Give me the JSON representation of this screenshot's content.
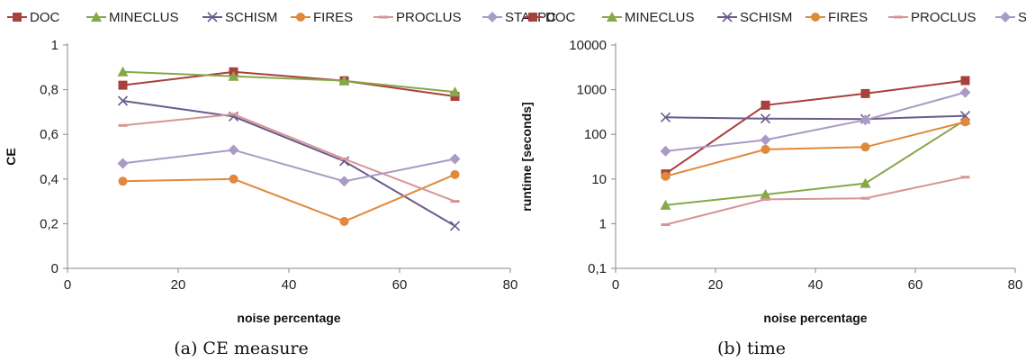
{
  "figure": {
    "captions": [
      "(a) CE measure",
      "(b) time"
    ]
  },
  "chart_data": [
    {
      "type": "line",
      "title": "",
      "caption": "(a) CE measure",
      "xlabel": "noise percentage",
      "ylabel": "CE",
      "xlim": [
        0,
        80
      ],
      "ylim": [
        0,
        1
      ],
      "xticks": [
        "0",
        "20",
        "40",
        "60",
        "80"
      ],
      "yticks": [
        "0",
        "0,2",
        "0,4",
        "0,6",
        "0,8",
        "1"
      ],
      "x": [
        10,
        30,
        50,
        70
      ],
      "legend_position": "top",
      "grid": false,
      "series": [
        {
          "name": "DOC",
          "color": "#a8403c",
          "marker": "square",
          "values": [
            0.82,
            0.88,
            0.84,
            0.77
          ]
        },
        {
          "name": "MINECLUS",
          "color": "#86a848",
          "marker": "triangle",
          "values": [
            0.88,
            0.86,
            0.84,
            0.79
          ]
        },
        {
          "name": "SCHISM",
          "color": "#6b5b8c",
          "marker": "x",
          "values": [
            0.75,
            0.68,
            0.48,
            0.19
          ]
        },
        {
          "name": "FIRES",
          "color": "#e0893c",
          "marker": "circle",
          "values": [
            0.39,
            0.4,
            0.21,
            0.42
          ]
        },
        {
          "name": "PROCLUS",
          "color": "#d69594",
          "marker": "dash",
          "values": [
            0.64,
            0.69,
            0.49,
            0.3
          ]
        },
        {
          "name": "STATPC",
          "color": "#a99bc5",
          "marker": "diamond",
          "values": [
            0.47,
            0.53,
            0.39,
            0.49
          ]
        }
      ]
    },
    {
      "type": "line",
      "title": "",
      "caption": "(b) time",
      "xlabel": "noise percentage",
      "ylabel": "runtime [seconds]",
      "xlim": [
        0,
        80
      ],
      "ylim": [
        0.1,
        10000
      ],
      "yscale": "log",
      "xticks": [
        "0",
        "20",
        "40",
        "60",
        "80"
      ],
      "yticks": [
        "0,1",
        "1",
        "10",
        "100",
        "1000",
        "10000"
      ],
      "x": [
        10,
        30,
        50,
        70
      ],
      "legend_position": "top",
      "grid": false,
      "series": [
        {
          "name": "DOC",
          "color": "#a8403c",
          "marker": "square",
          "values": [
            13,
            450,
            820,
            1600
          ]
        },
        {
          "name": "MINECLUS",
          "color": "#86a848",
          "marker": "triangle",
          "values": [
            2.6,
            4.5,
            8,
            210
          ]
        },
        {
          "name": "SCHISM",
          "color": "#6b5b8c",
          "marker": "x",
          "values": [
            240,
            225,
            220,
            260
          ]
        },
        {
          "name": "FIRES",
          "color": "#e0893c",
          "marker": "circle",
          "values": [
            11.5,
            46,
            52,
            190
          ]
        },
        {
          "name": "PROCLUS",
          "color": "#d69594",
          "marker": "dash",
          "values": [
            0.95,
            3.5,
            3.7,
            11
          ]
        },
        {
          "name": "STATPC",
          "color": "#a99bc5",
          "marker": "diamond",
          "values": [
            42,
            75,
            210,
            870
          ]
        }
      ]
    }
  ]
}
